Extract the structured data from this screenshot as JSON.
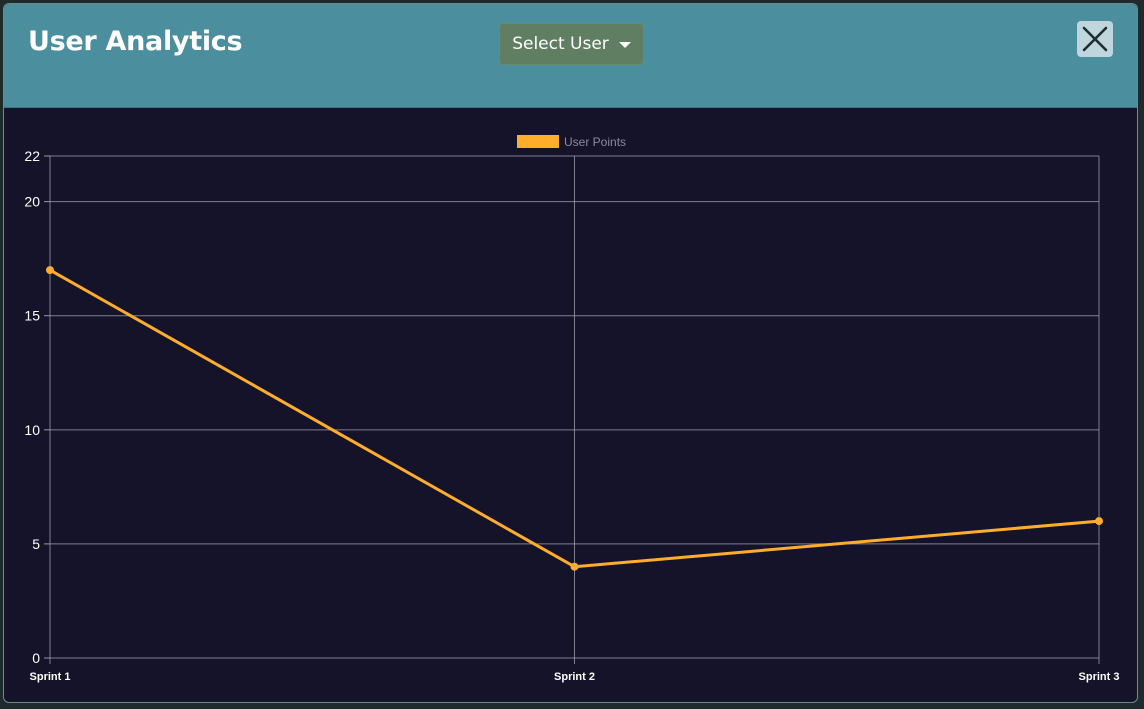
{
  "modal": {
    "title": "User Analytics",
    "select_user_label": "Select User",
    "close_icon": "close-icon"
  },
  "colors": {
    "header_bg": "#4b8f9e",
    "body_bg": "#14132a",
    "select_bg": "#5f7e62",
    "series": "#ffad2a",
    "grid": "#9a9aa8"
  },
  "chart_data": {
    "type": "line",
    "categories": [
      "Sprint 1",
      "Sprint 2",
      "Sprint 3"
    ],
    "series": [
      {
        "name": "User Points",
        "values": [
          17,
          4,
          6
        ]
      }
    ],
    "ylim": [
      0,
      22
    ],
    "yticks": [
      0,
      5,
      10,
      15,
      20,
      22
    ],
    "grid": true,
    "legend": "top-center"
  }
}
